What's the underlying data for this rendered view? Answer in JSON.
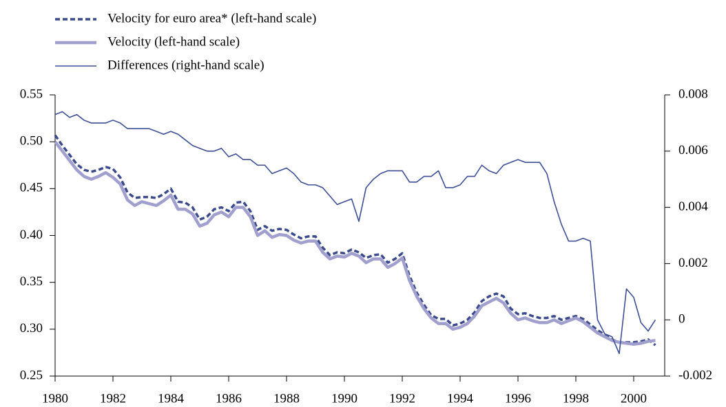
{
  "chart_data": {
    "type": "line",
    "x": [
      1980,
      1980.25,
      1980.5,
      1980.75,
      1981,
      1981.25,
      1981.5,
      1981.75,
      1982,
      1982.25,
      1982.5,
      1982.75,
      1983,
      1983.25,
      1983.5,
      1983.75,
      1984,
      1984.25,
      1984.5,
      1984.75,
      1985,
      1985.25,
      1985.5,
      1985.75,
      1986,
      1986.25,
      1986.5,
      1986.75,
      1987,
      1987.25,
      1987.5,
      1987.75,
      1988,
      1988.25,
      1988.5,
      1988.75,
      1989,
      1989.25,
      1989.5,
      1989.75,
      1990,
      1990.25,
      1990.5,
      1990.75,
      1991,
      1991.25,
      1991.5,
      1991.75,
      1992,
      1992.25,
      1992.5,
      1992.75,
      1993,
      1993.25,
      1993.5,
      1993.75,
      1994,
      1994.25,
      1994.5,
      1994.75,
      1995,
      1995.25,
      1995.5,
      1995.75,
      1996,
      1996.25,
      1996.5,
      1996.75,
      1997,
      1997.25,
      1997.5,
      1997.75,
      1998,
      1998.25,
      1998.5,
      1998.75,
      1999,
      1999.25,
      1999.5,
      1999.75,
      2000,
      2000.25,
      2000.5,
      2000.75
    ],
    "series": [
      {
        "name": "Velocity for euro area* (left-hand scale)",
        "color": "#3b4a8c",
        "style": "dashed",
        "values": [
          0.507,
          0.496,
          0.486,
          0.476,
          0.47,
          0.468,
          0.47,
          0.473,
          0.471,
          0.462,
          0.446,
          0.44,
          0.441,
          0.441,
          0.44,
          0.444,
          0.45,
          0.436,
          0.435,
          0.43,
          0.417,
          0.42,
          0.428,
          0.43,
          0.426,
          0.435,
          0.436,
          0.426,
          0.406,
          0.41,
          0.405,
          0.407,
          0.406,
          0.401,
          0.397,
          0.399,
          0.399,
          0.387,
          0.379,
          0.382,
          0.381,
          0.385,
          0.382,
          0.376,
          0.379,
          0.38,
          0.371,
          0.375,
          0.381,
          0.357,
          0.339,
          0.326,
          0.315,
          0.311,
          0.311,
          0.304,
          0.306,
          0.31,
          0.318,
          0.33,
          0.335,
          0.338,
          0.335,
          0.322,
          0.316,
          0.317,
          0.314,
          0.312,
          0.312,
          0.314,
          0.31,
          0.312,
          0.314,
          0.311,
          0.305,
          0.299,
          0.294,
          0.289,
          0.286,
          0.286,
          0.286,
          0.287,
          0.289,
          0.283
        ]
      },
      {
        "name": "Velocity (left-hand scale)",
        "color": "#a09fce",
        "style": "thick",
        "values": [
          0.5,
          0.49,
          0.48,
          0.47,
          0.463,
          0.46,
          0.463,
          0.467,
          0.462,
          0.455,
          0.438,
          0.432,
          0.436,
          0.434,
          0.432,
          0.437,
          0.443,
          0.428,
          0.428,
          0.423,
          0.41,
          0.413,
          0.422,
          0.425,
          0.42,
          0.43,
          0.43,
          0.42,
          0.4,
          0.405,
          0.398,
          0.401,
          0.4,
          0.395,
          0.392,
          0.394,
          0.394,
          0.382,
          0.375,
          0.378,
          0.377,
          0.381,
          0.378,
          0.371,
          0.375,
          0.375,
          0.366,
          0.37,
          0.376,
          0.352,
          0.335,
          0.322,
          0.312,
          0.306,
          0.306,
          0.3,
          0.302,
          0.306,
          0.314,
          0.325,
          0.329,
          0.333,
          0.328,
          0.317,
          0.31,
          0.312,
          0.309,
          0.307,
          0.307,
          0.31,
          0.306,
          0.309,
          0.312,
          0.308,
          0.302,
          0.296,
          0.292,
          0.288,
          0.286,
          0.285,
          0.284,
          0.285,
          0.287,
          0.288
        ]
      },
      {
        "name": "Differences (right-hand scale)",
        "color": "#3d4e96",
        "style": "thin",
        "axis": "y2",
        "values": [
          0.0073,
          0.0074,
          0.0072,
          0.0073,
          0.0071,
          0.007,
          0.007,
          0.007,
          0.0071,
          0.007,
          0.0068,
          0.0068,
          0.0068,
          0.0068,
          0.0067,
          0.0066,
          0.0067,
          0.0066,
          0.0064,
          0.0062,
          0.0061,
          0.006,
          0.006,
          0.0061,
          0.0058,
          0.0059,
          0.0057,
          0.0057,
          0.0055,
          0.0055,
          0.0052,
          0.0053,
          0.0054,
          0.0052,
          0.0049,
          0.0048,
          0.0048,
          0.0047,
          0.0044,
          0.0041,
          0.0042,
          0.0043,
          0.0035,
          0.0047,
          0.005,
          0.0052,
          0.0053,
          0.0053,
          0.0053,
          0.0049,
          0.0049,
          0.0051,
          0.0051,
          0.0053,
          0.0047,
          0.0047,
          0.0048,
          0.0051,
          0.0051,
          0.0055,
          0.0053,
          0.0052,
          0.0055,
          0.0056,
          0.0057,
          0.0056,
          0.0056,
          0.0056,
          0.0052,
          0.0042,
          0.0034,
          0.0028,
          0.0028,
          0.0029,
          0.0028,
          0.0,
          -0.0005,
          -0.0006,
          -0.0012,
          0.0011,
          0.0008,
          -0.0001,
          -0.0004,
          0.0
        ]
      }
    ],
    "xlim": [
      1980,
      2001
    ],
    "xticks": [
      1980,
      1982,
      1984,
      1986,
      1988,
      1990,
      1992,
      1994,
      1996,
      1998,
      2000
    ],
    "ylim": [
      0.25,
      0.55
    ],
    "yticks": [
      0.25,
      {
        "value": 0.3,
        "label": "0.30"
      },
      0.35,
      {
        "value": 0.4,
        "label": "0.40"
      },
      0.45,
      {
        "value": 0.5,
        "label": "0.50"
      },
      0.55
    ],
    "y2lim": [
      -0.002,
      0.008
    ],
    "y2ticks": [
      -0.002,
      0,
      0.002,
      0.004,
      0.006,
      0.008
    ],
    "legend": "top-left"
  }
}
